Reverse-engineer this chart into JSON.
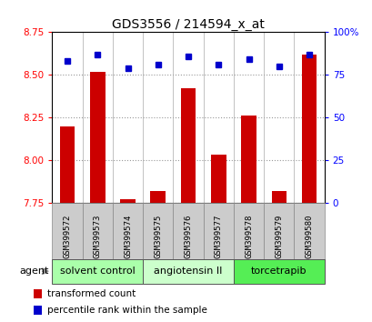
{
  "title": "GDS3556 / 214594_x_at",
  "samples": [
    "GSM399572",
    "GSM399573",
    "GSM399574",
    "GSM399575",
    "GSM399576",
    "GSM399577",
    "GSM399578",
    "GSM399579",
    "GSM399580"
  ],
  "transformed_counts": [
    8.2,
    8.52,
    7.77,
    7.82,
    8.42,
    8.03,
    8.26,
    7.82,
    8.62
  ],
  "percentile_ranks": [
    83,
    87,
    79,
    81,
    86,
    81,
    84,
    80,
    87
  ],
  "ylim_left": [
    7.75,
    8.75
  ],
  "yticks_left": [
    7.75,
    8.0,
    8.25,
    8.5,
    8.75
  ],
  "yticks_right": [
    0,
    25,
    50,
    75,
    100
  ],
  "ylim_right": [
    0,
    100
  ],
  "bar_color": "#cc0000",
  "dot_color": "#0000cc",
  "groups": [
    {
      "label": "solvent control",
      "start": 0,
      "end": 3,
      "color": "#aaffaa"
    },
    {
      "label": "angiotensin II",
      "start": 3,
      "end": 6,
      "color": "#ccffcc"
    },
    {
      "label": "torcetrapib",
      "start": 6,
      "end": 9,
      "color": "#55ee55"
    }
  ],
  "agent_label": "agent",
  "legend_items": [
    {
      "color": "#cc0000",
      "label": "transformed count"
    },
    {
      "color": "#0000cc",
      "label": "percentile rank within the sample"
    }
  ],
  "bar_width": 0.5,
  "background_sample": "#cccccc",
  "title_fontsize": 10,
  "tick_fontsize": 7.5,
  "sample_fontsize": 6.5,
  "group_fontsize": 8,
  "legend_fontsize": 7.5
}
